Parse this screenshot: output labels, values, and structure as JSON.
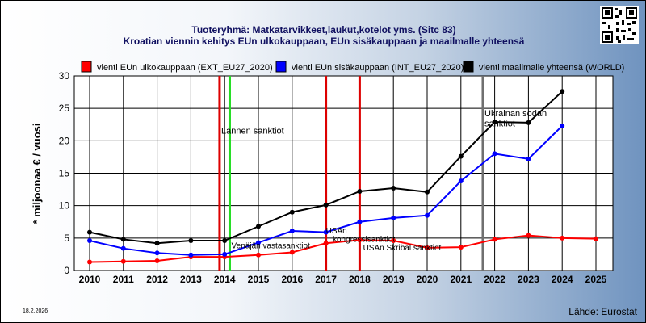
{
  "header": {
    "title_line1": "Tuoteryhmä: Matkatarvikkeet,laukut,kotelot yms. (Sitc 83)",
    "title_line2": "Kroatian viennin kehitys EUn ulkokauppaan, EUn sisäkauppaan ja maailmalle yhteensä"
  },
  "footer": {
    "date": "18.2.2026",
    "source": "Lähde: Eurostat"
  },
  "chart_data": {
    "type": "line",
    "ylabel": "* miljoonaa € / vuosi",
    "xlabel": "",
    "ylim": [
      0,
      30
    ],
    "yticks": [
      0,
      5,
      10,
      15,
      20,
      25,
      30
    ],
    "x": [
      "2010",
      "2011",
      "2012",
      "2013",
      "2014",
      "2015",
      "2016",
      "2017",
      "2018",
      "2019",
      "2020",
      "2021",
      "2022",
      "2023",
      "2024",
      "2025"
    ],
    "grid": true,
    "legend_position": "top",
    "series": [
      {
        "name": "vienti EUn ulkokauppaan (EXT_EU27_2020)",
        "color": "#ff0000",
        "values": [
          1.3,
          1.4,
          1.5,
          2.1,
          2.1,
          2.4,
          2.8,
          4.2,
          4.7,
          4.6,
          3.5,
          3.6,
          4.8,
          5.4,
          5.0,
          4.9
        ]
      },
      {
        "name": "vienti EUn sisäkauppaan (INT_EU27_2020)",
        "color": "#0000ff",
        "values": [
          4.6,
          3.4,
          2.7,
          2.4,
          2.5,
          4.3,
          6.1,
          5.9,
          7.5,
          8.1,
          8.5,
          13.8,
          18.0,
          17.2,
          22.3,
          null
        ]
      },
      {
        "name": "vienti maailmalle yhteensä (WORLD)",
        "color": "#000000",
        "values": [
          5.9,
          4.8,
          4.2,
          4.6,
          4.6,
          6.8,
          9.0,
          10.1,
          12.2,
          12.7,
          12.1,
          17.6,
          22.9,
          22.8,
          27.6,
          null
        ]
      }
    ],
    "event_lines": [
      {
        "x": 2013.85,
        "color": "#dd0000"
      },
      {
        "x": 2014.15,
        "color": "#22dd22"
      },
      {
        "x": 2017.0,
        "color": "#dd0000"
      },
      {
        "x": 2018.0,
        "color": "#dd0000"
      },
      {
        "x": 2021.65,
        "color": "#707070"
      }
    ],
    "annotations": [
      {
        "text": "Lännen sanktiot",
        "x": 2013.9,
        "y": 21.1
      },
      {
        "text": "Venäjän vastasanktiot",
        "x": 2014.2,
        "y": 3.4
      },
      {
        "text": "USAn",
        "x": 2017.0,
        "y": 5.7
      },
      {
        "text": "kongressisanktiot",
        "x": 2017.2,
        "y": 4.4
      },
      {
        "text": "USAn Skribal sanktiot",
        "x": 2018.1,
        "y": 3.1
      },
      {
        "text": "Ukrainan sodan",
        "x": 2021.7,
        "y": 23.8
      },
      {
        "text": "sanktiot",
        "x": 2021.7,
        "y": 22.2
      }
    ]
  }
}
